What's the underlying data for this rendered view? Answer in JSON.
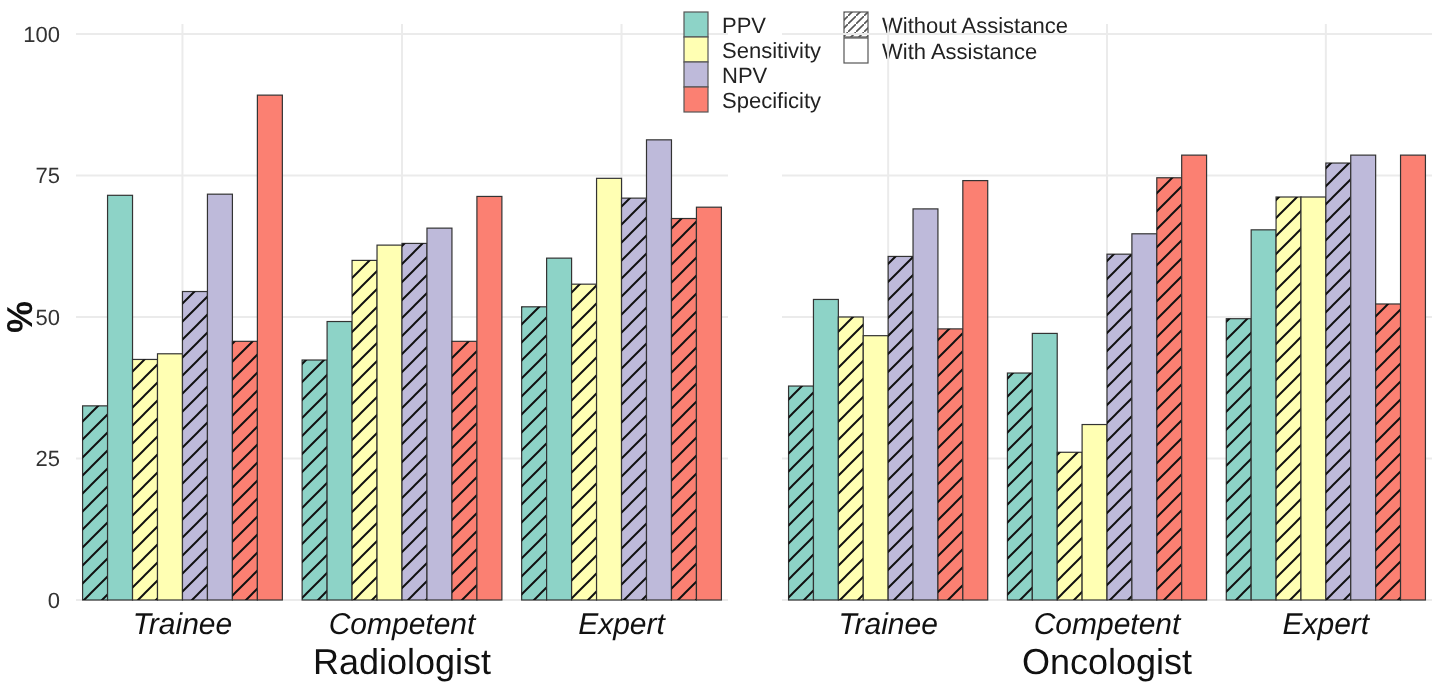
{
  "chart_data": [
    {
      "type": "bar",
      "xlabel": "Radiologist",
      "ylabel": "%",
      "categories": [
        "Trainee",
        "Competent",
        "Expert"
      ],
      "ylim": [
        0,
        100
      ],
      "yticks": [
        0,
        25,
        50,
        75,
        100
      ],
      "grid": true,
      "legend": "top right",
      "annotations": [
        "Without Assistance",
        "With Assistance"
      ],
      "series": [
        {
          "color": "#8dd3c7",
          "values": [
            34.3,
            42.4,
            51.8
          ]
        },
        {
          "name": "PPV",
          "color": "#8dd3c7",
          "values": [
            71.5,
            49.2,
            60.4
          ]
        },
        {
          "color": "#ffffb3",
          "values": [
            42.5,
            60,
            55.8
          ]
        },
        {
          "name": "Sensitivity",
          "color": "#ffffb3",
          "values": [
            43.5,
            62.7,
            74.5
          ]
        },
        {
          "color": "#bebada",
          "values": [
            54.5,
            63,
            71
          ]
        },
        {
          "name": "NPV",
          "color": "#bebada",
          "values": [
            71.7,
            65.7,
            81.3
          ]
        },
        {
          "color": "#fb8072",
          "values": [
            45.7,
            45.7,
            67.4
          ]
        },
        {
          "name": "Specificity",
          "color": "#fb8072",
          "values": [
            89.2,
            71.3,
            69.4
          ]
        }
      ]
    },
    {
      "type": "bar",
      "xlabel": "Oncologist",
      "categories": [
        "Trainee",
        "Competent",
        "Expert"
      ],
      "ylim": [
        0,
        100
      ],
      "yticks": [
        0,
        25,
        50,
        75,
        100
      ],
      "grid": true,
      "tick_labels": "x",
      "series": [
        {
          "color": "#8dd3c7",
          "values": [
            37.8,
            40.1,
            49.7
          ]
        },
        {
          "color": "#8dd3c7",
          "values": [
            53.1,
            47.1,
            65.4
          ]
        },
        {
          "color": "#ffffb3",
          "values": [
            50,
            26.1,
            71.2
          ]
        },
        {
          "color": "#ffffb3",
          "values": [
            46.7,
            31,
            71.2
          ]
        },
        {
          "color": "#bebada",
          "values": [
            60.7,
            61.1,
            77.2
          ]
        },
        {
          "color": "#bebada",
          "values": [
            69.1,
            64.7,
            78.6
          ]
        },
        {
          "color": "#fb8072",
          "values": [
            47.9,
            74.6,
            52.3
          ]
        },
        {
          "color": "#fb8072",
          "values": [
            74.1,
            78.6,
            78.6
          ]
        }
      ]
    }
  ]
}
